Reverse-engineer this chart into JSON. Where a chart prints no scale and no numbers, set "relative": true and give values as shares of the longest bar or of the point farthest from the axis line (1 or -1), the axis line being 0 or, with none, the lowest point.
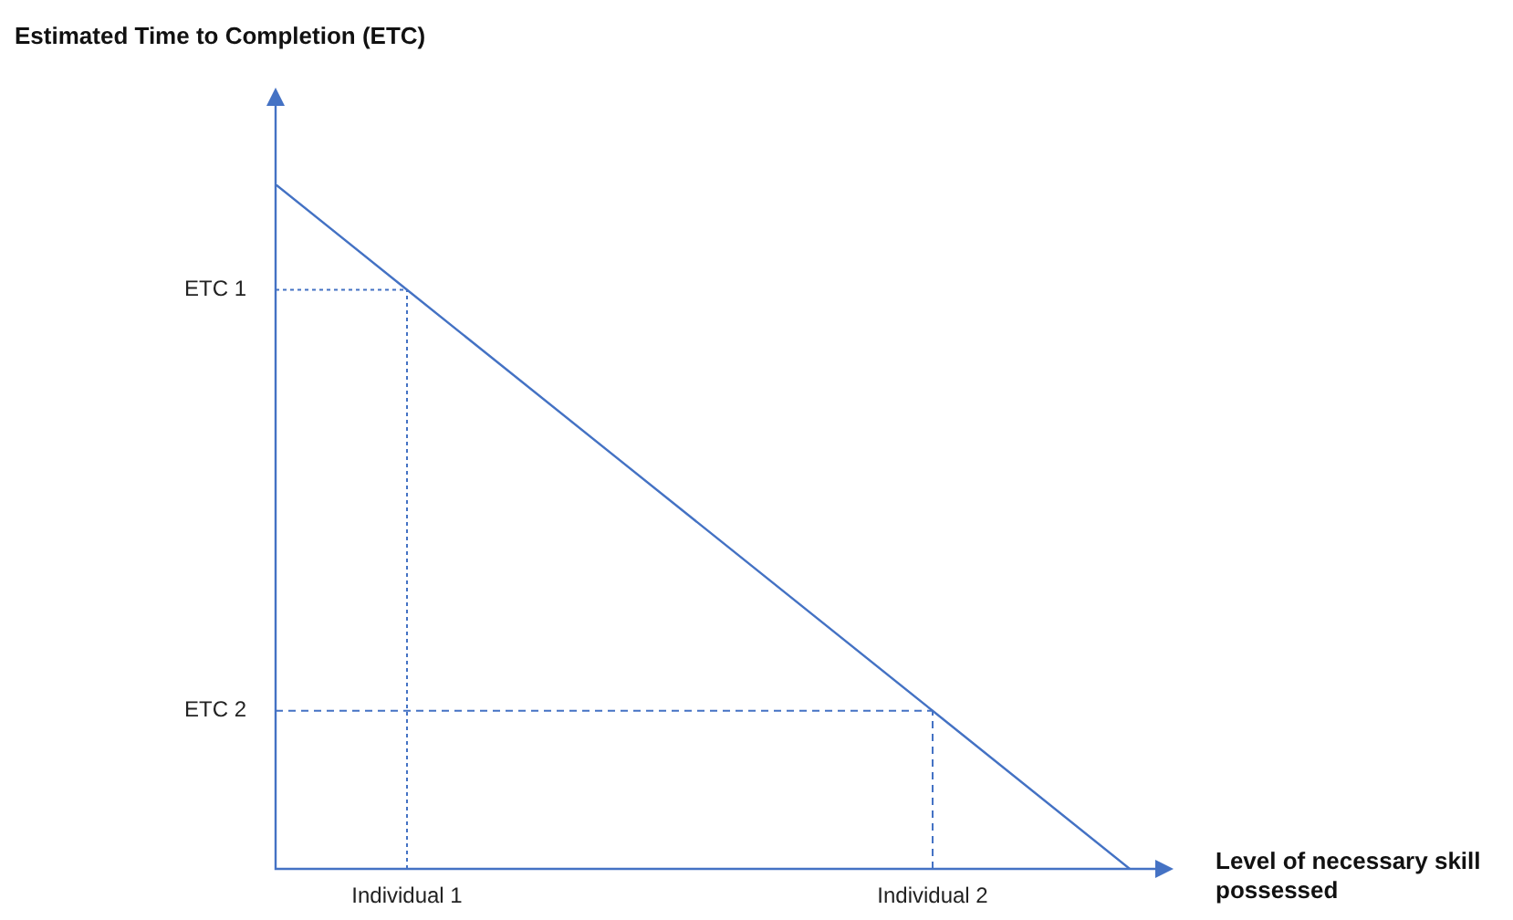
{
  "chart_data": {
    "type": "line",
    "relative": true,
    "title": "Estimated Time to Completion (ETC)",
    "xlabel": "Level of necessary skill possessed",
    "categories": [
      null,
      null,
      "Individual 1",
      null,
      null,
      null,
      null,
      null,
      null,
      null,
      "Individual 2",
      null,
      null,
      null
    ],
    "series": [
      {
        "color": "#4472c4",
        "values": [
          1,
          null,
          0.846,
          null,
          null,
          null,
          null,
          null,
          null,
          null,
          0.231,
          null,
          null,
          0
        ]
      }
    ],
    "ref_lines": [
      {
        "axis": "y",
        "value": 0.846,
        "label": "ETC 1",
        "line_style": "dotted",
        "color": "#4472c4"
      },
      {
        "axis": "y",
        "value": 0.231,
        "label": "ETC 2",
        "line_style": "dashed",
        "color": "#4472c4"
      },
      {
        "axis": "x",
        "value": "Individual 1",
        "line_style": "dotted",
        "color": "#4472c4"
      },
      {
        "axis": "x",
        "value": "Individual 2",
        "line_style": "dashed",
        "color": "#4472c4"
      }
    ],
    "legend": false,
    "marker": "none",
    "line_style": "solid"
  }
}
